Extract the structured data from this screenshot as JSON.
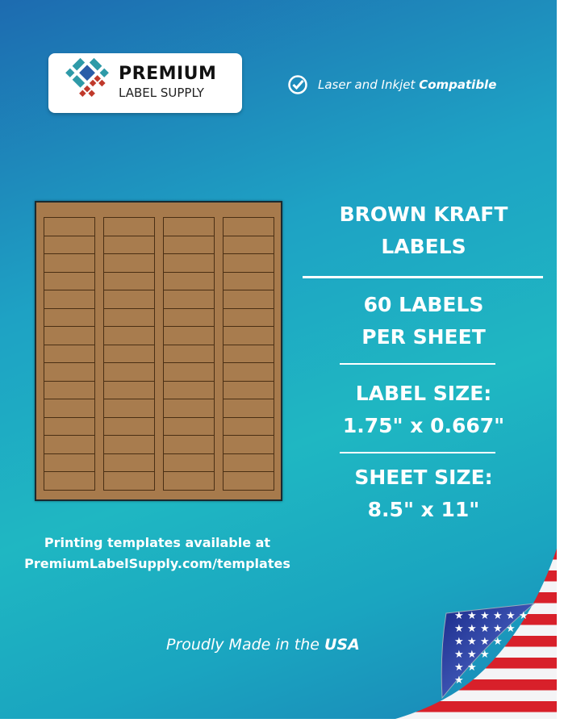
{
  "brand": {
    "name_line1": "PREMIUM",
    "name_line2": "LABEL SUPPLY",
    "logo_colors": [
      "#2a5da8",
      "#2e9aa8",
      "#c0392b"
    ]
  },
  "compatibility": {
    "icon": "check-circle-icon",
    "text": "Laser and Inkjet",
    "emphasis": "Compatible"
  },
  "product": {
    "title_line1": "BROWN KRAFT",
    "title_line2": "LABELS",
    "count_line1": "60 LABELS",
    "count_line2": "PER SHEET",
    "label_size_heading": "LABEL SIZE:",
    "label_size_value": "1.75\" x 0.667\"",
    "sheet_size_heading": "SHEET SIZE:",
    "sheet_size_value": "8.5\" x 11\""
  },
  "sheet_preview": {
    "columns": 4,
    "rows": 15,
    "label_color": "#a87c4e"
  },
  "templates": {
    "line1": "Printing templates available at",
    "line2": "PremiumLabelSupply.com/templates"
  },
  "origin": {
    "text": "Proudly Made in the",
    "emphasis": "USA",
    "icon": "us-flag-icon"
  }
}
